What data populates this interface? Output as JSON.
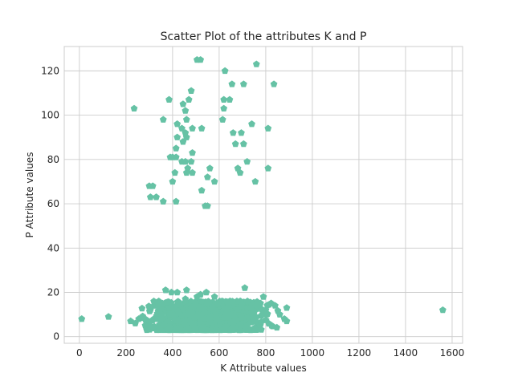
{
  "chart_data": {
    "type": "scatter",
    "title": "Scatter Plot of the attributes K and P",
    "xlabel": "K Attribute values",
    "ylabel": "P Attribute values",
    "xlim": [
      -65,
      1645
    ],
    "ylim": [
      -3,
      131
    ],
    "xticks": [
      0,
      200,
      400,
      600,
      800,
      1000,
      1200,
      1400,
      1600
    ],
    "yticks": [
      0,
      20,
      40,
      60,
      80,
      100,
      120
    ],
    "grid": true,
    "marker": "pentagon",
    "color": "#66c2a5",
    "series": [
      {
        "points": [
          [
            10,
            8
          ],
          [
            125,
            9
          ],
          [
            1560,
            12
          ],
          [
            505,
            125
          ],
          [
            520,
            125
          ],
          [
            625,
            120
          ],
          [
            760,
            123
          ],
          [
            835,
            114
          ],
          [
            655,
            114
          ],
          [
            705,
            114
          ],
          [
            480,
            111
          ],
          [
            235,
            103
          ],
          [
            385,
            107
          ],
          [
            445,
            105
          ],
          [
            470,
            107
          ],
          [
            620,
            103
          ],
          [
            620,
            107
          ],
          [
            645,
            107
          ],
          [
            455,
            102
          ],
          [
            460,
            98
          ],
          [
            360,
            98
          ],
          [
            615,
            98
          ],
          [
            420,
            96
          ],
          [
            740,
            96
          ],
          [
            525,
            94
          ],
          [
            440,
            94
          ],
          [
            485,
            94
          ],
          [
            810,
            94
          ],
          [
            455,
            92
          ],
          [
            660,
            92
          ],
          [
            695,
            92
          ],
          [
            420,
            90
          ],
          [
            460,
            90
          ],
          [
            445,
            88
          ],
          [
            670,
            87
          ],
          [
            705,
            87
          ],
          [
            485,
            83
          ],
          [
            415,
            85
          ],
          [
            415,
            81
          ],
          [
            390,
            81
          ],
          [
            400,
            81
          ],
          [
            440,
            79
          ],
          [
            455,
            79
          ],
          [
            480,
            79
          ],
          [
            720,
            79
          ],
          [
            560,
            76
          ],
          [
            465,
            76
          ],
          [
            680,
            76
          ],
          [
            690,
            74
          ],
          [
            810,
            76
          ],
          [
            460,
            74
          ],
          [
            485,
            74
          ],
          [
            410,
            74
          ],
          [
            550,
            72
          ],
          [
            400,
            70
          ],
          [
            580,
            70
          ],
          [
            755,
            70
          ],
          [
            300,
            68
          ],
          [
            315,
            68
          ],
          [
            525,
            66
          ],
          [
            305,
            63
          ],
          [
            330,
            63
          ],
          [
            360,
            61
          ],
          [
            415,
            61
          ],
          [
            540,
            59
          ],
          [
            550,
            59
          ],
          [
            370,
            21
          ],
          [
            395,
            20
          ],
          [
            420,
            20
          ],
          [
            460,
            21
          ],
          [
            520,
            19
          ],
          [
            545,
            20
          ],
          [
            580,
            18
          ],
          [
            710,
            22
          ],
          [
            790,
            18
          ],
          [
            255,
            8
          ],
          [
            305,
            12
          ],
          [
            340,
            15
          ],
          [
            455,
            17
          ],
          [
            505,
            18
          ],
          [
            640,
            14
          ],
          [
            690,
            16
          ],
          [
            760,
            15
          ],
          [
            840,
            14
          ],
          [
            890,
            13
          ],
          [
            800,
            12
          ],
          [
            860,
            10
          ],
          [
            880,
            8
          ],
          [
            890,
            7
          ],
          [
            825,
            5
          ],
          [
            220,
            7
          ],
          [
            240,
            6
          ]
        ]
      },
      {
        "name": "",
        "points": []
      }
    ],
    "dense_cluster": {
      "xrange": [
        230,
        880
      ],
      "yrange": [
        3,
        16
      ],
      "count": 1200
    }
  }
}
